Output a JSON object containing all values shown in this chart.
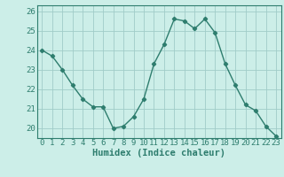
{
  "x": [
    0,
    1,
    2,
    3,
    4,
    5,
    6,
    7,
    8,
    9,
    10,
    11,
    12,
    13,
    14,
    15,
    16,
    17,
    18,
    19,
    20,
    21,
    22,
    23
  ],
  "y": [
    24.0,
    23.7,
    23.0,
    22.2,
    21.5,
    21.1,
    21.1,
    20.0,
    20.1,
    20.6,
    21.5,
    23.3,
    24.3,
    25.6,
    25.5,
    25.1,
    25.6,
    24.9,
    23.3,
    22.2,
    21.2,
    20.9,
    20.1,
    19.6
  ],
  "line_color": "#2e7d6e",
  "marker": "D",
  "marker_size": 2.2,
  "bg_color": "#cceee8",
  "grid_color": "#a0ccc8",
  "xlabel": "Humidex (Indice chaleur)",
  "xlim": [
    -0.5,
    23.5
  ],
  "ylim": [
    19.5,
    26.3
  ],
  "yticks": [
    20,
    21,
    22,
    23,
    24,
    25,
    26
  ],
  "xticks": [
    0,
    1,
    2,
    3,
    4,
    5,
    6,
    7,
    8,
    9,
    10,
    11,
    12,
    13,
    14,
    15,
    16,
    17,
    18,
    19,
    20,
    21,
    22,
    23
  ],
  "tick_fontsize": 6.5,
  "xlabel_fontsize": 7.5
}
